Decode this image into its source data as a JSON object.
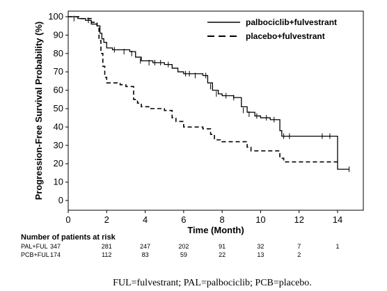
{
  "chart_data": {
    "type": "line",
    "xlabel": "Time (Month)",
    "ylabel": "Progression-Free Survival Probability (%)",
    "xlim": [
      0,
      15
    ],
    "ylim": [
      0,
      100
    ],
    "x_ticks": [
      0,
      2,
      4,
      6,
      8,
      10,
      12,
      14
    ],
    "y_ticks": [
      0,
      10,
      20,
      30,
      40,
      50,
      60,
      70,
      80,
      90,
      100
    ],
    "legend_position": "top-right",
    "series": [
      {
        "name": "palbociclib+fulvestrant",
        "style": "solid",
        "color": "#000000",
        "x": [
          0,
          0.5,
          0.9,
          1.2,
          1.5,
          1.65,
          1.75,
          1.85,
          2.0,
          2.3,
          3.2,
          3.5,
          3.8,
          4.4,
          5.0,
          5.4,
          5.7,
          6.0,
          7.0,
          7.25,
          7.5,
          7.8,
          8.0,
          8.6,
          9.0,
          9.3,
          9.7,
          10.0,
          10.5,
          11.0,
          11.1,
          13.9,
          14.0,
          14.6
        ],
        "y": [
          100,
          99,
          98,
          96,
          95,
          91,
          88,
          86,
          83,
          82,
          81,
          78,
          76,
          75,
          74,
          72,
          70,
          69,
          68,
          64,
          60,
          58,
          57,
          56,
          51,
          48,
          46,
          45,
          44,
          38,
          35,
          35,
          17,
          17
        ],
        "censor_x": [
          0.3,
          1.05,
          2.4,
          2.9,
          3.3,
          3.75,
          4.2,
          4.5,
          4.8,
          5.2,
          6.1,
          6.3,
          6.6,
          7.15,
          7.4,
          7.7,
          8.2,
          8.6,
          9.1,
          9.4,
          9.8,
          10.3,
          10.7,
          11.2,
          11.5,
          13.2,
          13.6,
          14.6
        ],
        "censor_y": [
          99,
          98,
          82,
          81,
          80,
          76,
          75,
          75,
          75,
          74,
          69,
          69,
          68,
          68,
          62,
          58,
          57,
          56,
          49,
          47,
          46,
          45,
          44,
          35,
          35,
          35,
          35,
          17
        ]
      },
      {
        "name": "placebo+fulvestrant",
        "style": "dashed",
        "color": "#000000",
        "x": [
          0,
          0.6,
          1.2,
          1.5,
          1.6,
          1.7,
          1.8,
          1.9,
          2.0,
          2.7,
          3.0,
          3.4,
          3.6,
          3.8,
          4.3,
          5.0,
          5.4,
          5.6,
          6.0,
          7.0,
          7.4,
          7.6,
          8.0,
          8.5,
          9.3,
          9.5,
          10.5,
          11.0,
          11.2,
          14.0
        ],
        "y": [
          100,
          99,
          97,
          95,
          87,
          80,
          73,
          67,
          64,
          63,
          62,
          55,
          53,
          51,
          50,
          49,
          45,
          43,
          40,
          39,
          36,
          33,
          32,
          32,
          29,
          27,
          27,
          23,
          21,
          21
        ]
      }
    ],
    "risk_table": {
      "title": "Number of patients at risk",
      "times": [
        0,
        2,
        4,
        6,
        8,
        10,
        12,
        14
      ],
      "rows": [
        {
          "label": "PAL+FUL",
          "values": [
            "347",
            "281",
            "247",
            "202",
            "91",
            "32",
            "7",
            "1"
          ]
        },
        {
          "label": "PCB+FUL",
          "values": [
            "174",
            "112",
            "83",
            "59",
            "22",
            "13",
            "2",
            ""
          ]
        }
      ]
    }
  },
  "caption": "FUL=fulvestrant; PAL=palbociclib; PCB=placebo."
}
